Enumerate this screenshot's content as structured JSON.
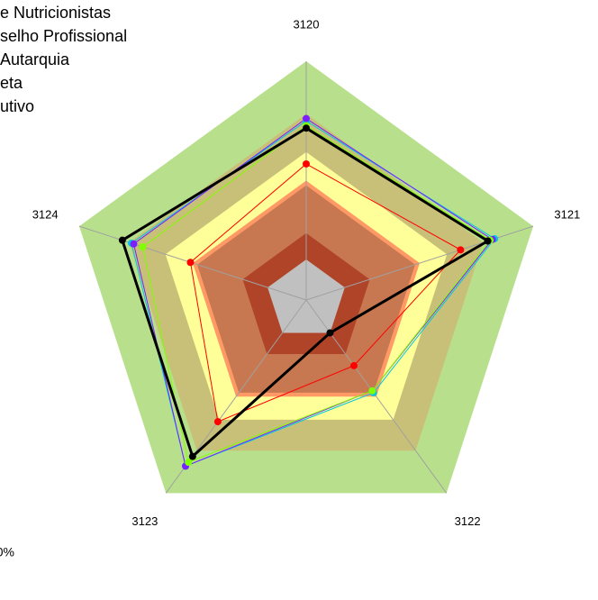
{
  "chart_data": {
    "type": "radar",
    "categories": [
      "3120",
      "3121",
      "3122",
      "3123",
      "3124"
    ],
    "rlim": [
      0,
      100
    ],
    "bands": [
      {
        "value": 100,
        "color": "#b8e08c"
      },
      {
        "value": 78,
        "color": "#c8c078"
      },
      {
        "value": 62,
        "color": "#ffff99"
      },
      {
        "value": 50,
        "color": "#ff9966"
      },
      {
        "value": 48,
        "color": "#c87850"
      },
      {
        "value": 28,
        "color": "#b04428"
      },
      {
        "value": 17,
        "color": "#c0c0c0"
      }
    ],
    "series": [
      {
        "name": "e Nutricionistas",
        "color": "#ff0000",
        "width": 1,
        "values": [
          57,
          68,
          34,
          63,
          51
        ]
      },
      {
        "name": "selho Profissional",
        "color": "#00c8e0",
        "width": 1,
        "values": [
          75,
          83,
          48,
          86,
          77
        ]
      },
      {
        "name": "Autarquia",
        "color": "#7a1fff",
        "width": 1,
        "values": [
          76,
          82,
          47,
          86,
          76
        ]
      },
      {
        "name": "eta",
        "color": "#80ff00",
        "width": 1,
        "values": [
          73,
          81,
          47,
          84,
          72
        ]
      },
      {
        "name": "utivo",
        "color": "#000000",
        "width": 3,
        "values": [
          72,
          80,
          17,
          81,
          81
        ]
      }
    ],
    "footer_text": "0%"
  }
}
